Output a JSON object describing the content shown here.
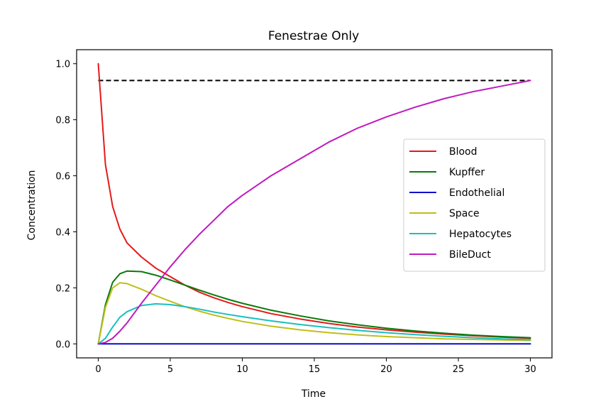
{
  "chart_data": {
    "type": "line",
    "title": "Fenestrae Only",
    "xlabel": "Time",
    "ylabel": "Concentration",
    "xlim": [
      -1.5,
      31.5
    ],
    "ylim": [
      -0.05,
      1.05
    ],
    "xticks": [
      0,
      5,
      10,
      15,
      20,
      25,
      30
    ],
    "yticks": [
      0.0,
      0.2,
      0.4,
      0.6,
      0.8,
      1.0
    ],
    "xtick_labels": [
      "0",
      "5",
      "10",
      "15",
      "20",
      "25",
      "30"
    ],
    "ytick_labels": [
      "0.0",
      "0.2",
      "0.4",
      "0.6",
      "0.8",
      "1.0"
    ],
    "grid": false,
    "legend_position": "center-right",
    "reference_line": {
      "y": 0.94,
      "x": [
        0,
        30
      ],
      "style": "dashed",
      "color": "#000000"
    },
    "x": [
      0,
      0.5,
      1,
      1.5,
      2,
      3,
      4,
      5,
      6,
      7,
      8,
      9,
      10,
      12,
      14,
      16,
      18,
      20,
      22,
      24,
      26,
      28,
      30
    ],
    "series": [
      {
        "name": "Blood",
        "color": "#e41a1a",
        "values": [
          1.0,
          0.64,
          0.49,
          0.41,
          0.36,
          0.31,
          0.27,
          0.24,
          0.21,
          0.185,
          0.165,
          0.148,
          0.133,
          0.108,
          0.089,
          0.073,
          0.06,
          0.05,
          0.042,
          0.035,
          0.029,
          0.024,
          0.02
        ]
      },
      {
        "name": "Kupffer",
        "color": "#0a7a0a",
        "values": [
          0.0,
          0.14,
          0.22,
          0.25,
          0.26,
          0.258,
          0.245,
          0.228,
          0.21,
          0.192,
          0.175,
          0.159,
          0.145,
          0.12,
          0.1,
          0.082,
          0.068,
          0.056,
          0.046,
          0.038,
          0.031,
          0.026,
          0.022
        ]
      },
      {
        "name": "Endothelial",
        "color": "#0a0acc",
        "values": [
          0.0,
          0.0,
          0.0,
          0.0,
          0.0,
          0.0,
          0.0,
          0.0,
          0.0,
          0.0,
          0.0,
          0.0,
          0.0,
          0.0,
          0.0,
          0.0,
          0.0,
          0.0,
          0.0,
          0.0,
          0.0,
          0.0,
          0.0
        ]
      },
      {
        "name": "Space",
        "color": "#bfbf1a",
        "values": [
          0.0,
          0.13,
          0.2,
          0.218,
          0.215,
          0.195,
          0.172,
          0.152,
          0.133,
          0.117,
          0.103,
          0.091,
          0.08,
          0.063,
          0.05,
          0.04,
          0.032,
          0.026,
          0.022,
          0.018,
          0.016,
          0.014,
          0.012
        ]
      },
      {
        "name": "Hepatocytes",
        "color": "#1abfbf",
        "values": [
          0.0,
          0.02,
          0.06,
          0.095,
          0.115,
          0.137,
          0.143,
          0.14,
          0.133,
          0.124,
          0.114,
          0.105,
          0.097,
          0.082,
          0.069,
          0.058,
          0.048,
          0.04,
          0.033,
          0.027,
          0.022,
          0.018,
          0.015
        ]
      },
      {
        "name": "BileDuct",
        "color": "#bf1abf",
        "values": [
          0.0,
          0.005,
          0.02,
          0.045,
          0.075,
          0.145,
          0.21,
          0.275,
          0.335,
          0.39,
          0.44,
          0.49,
          0.53,
          0.6,
          0.66,
          0.72,
          0.77,
          0.81,
          0.845,
          0.875,
          0.9,
          0.92,
          0.94
        ]
      }
    ]
  }
}
